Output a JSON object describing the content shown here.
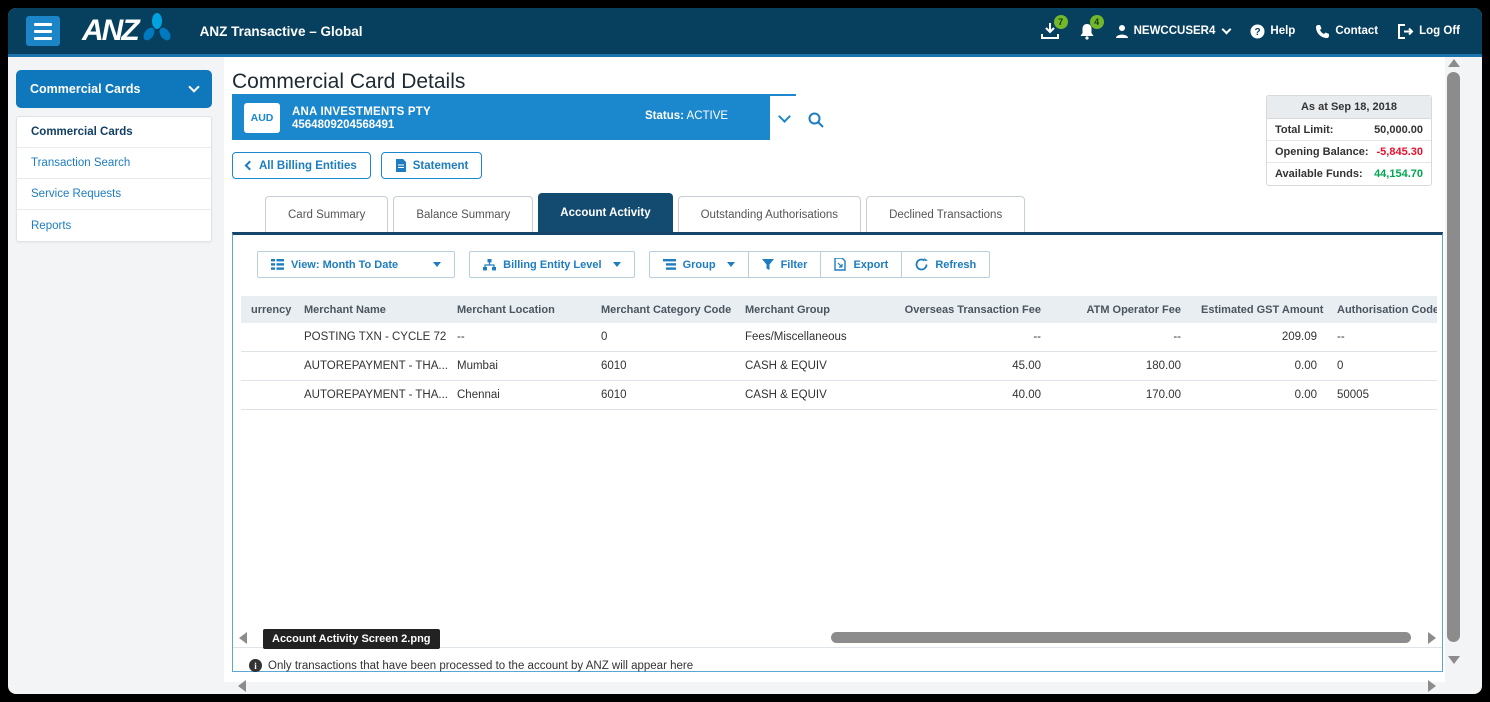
{
  "app": {
    "logo_text": "ANZ",
    "title": "ANZ Transactive – Global",
    "download_badge": "7",
    "notification_badge": "4",
    "user": "NEWCCUSER4",
    "help_label": "Help",
    "contact_label": "Contact",
    "logoff_label": "Log Off"
  },
  "sidebar": {
    "menu_title": "Commercial Cards",
    "items": [
      {
        "label": "Commercial Cards",
        "active": true
      },
      {
        "label": "Transaction Search",
        "active": false
      },
      {
        "label": "Service Requests",
        "active": false
      },
      {
        "label": "Reports",
        "active": false
      }
    ]
  },
  "page": {
    "title": "Commercial Card Details",
    "account": {
      "currency_badge": "AUD",
      "name": "ANA INVESTMENTS PTY",
      "number": "4564809204568491",
      "status_label": "Status:",
      "status_value": "ACTIVE"
    },
    "summary": {
      "header": "As at Sep 18, 2018",
      "rows": [
        {
          "label": "Total Limit:",
          "value": "50,000.00",
          "color": "#333333"
        },
        {
          "label": "Opening Balance:",
          "value": "-5,845.30",
          "color": "#e8112d"
        },
        {
          "label": "Available Funds:",
          "value": "44,154.70",
          "color": "#00a651"
        }
      ]
    },
    "buttons": {
      "all_billing_entities": "All Billing Entities",
      "statement": "Statement"
    },
    "tabs": [
      {
        "label": "Card Summary",
        "active": false
      },
      {
        "label": "Balance Summary",
        "active": false
      },
      {
        "label": "Account Activity",
        "active": true
      },
      {
        "label": "Outstanding Authorisations",
        "active": false
      },
      {
        "label": "Declined Transactions",
        "active": false
      }
    ],
    "toolbar": {
      "view": "View: Month To Date",
      "billing_entity_level": "Billing Entity Level",
      "group": "Group",
      "filter": "Filter",
      "export": "Export",
      "refresh": "Refresh"
    },
    "table": {
      "columns": [
        "urrency",
        "Merchant Name",
        "Merchant Location",
        "Merchant Category Code",
        "Merchant Group",
        "Overseas Transaction Fee",
        "ATM Operator Fee",
        "Estimated GST Amount",
        "Authorisation Code"
      ],
      "rows": [
        [
          "",
          "POSTING TXN - CYCLE 72",
          "--",
          "0",
          "Fees/Miscellaneous",
          "--",
          "--",
          "209.09",
          "--"
        ],
        [
          "",
          "AUTOREPAYMENT - THA...",
          "Mumbai",
          "6010",
          "CASH & EQUIV",
          "45.00",
          "180.00",
          "0.00",
          "0"
        ],
        [
          "",
          "AUTOREPAYMENT - THA...",
          "Chennai",
          "6010",
          "CASH & EQUIV",
          "40.00",
          "170.00",
          "0.00",
          "50005"
        ]
      ]
    },
    "tooltip": "Account Activity Screen 2.png",
    "footer_note": "Only transactions that have been processed to the account by ANZ will appear here"
  }
}
